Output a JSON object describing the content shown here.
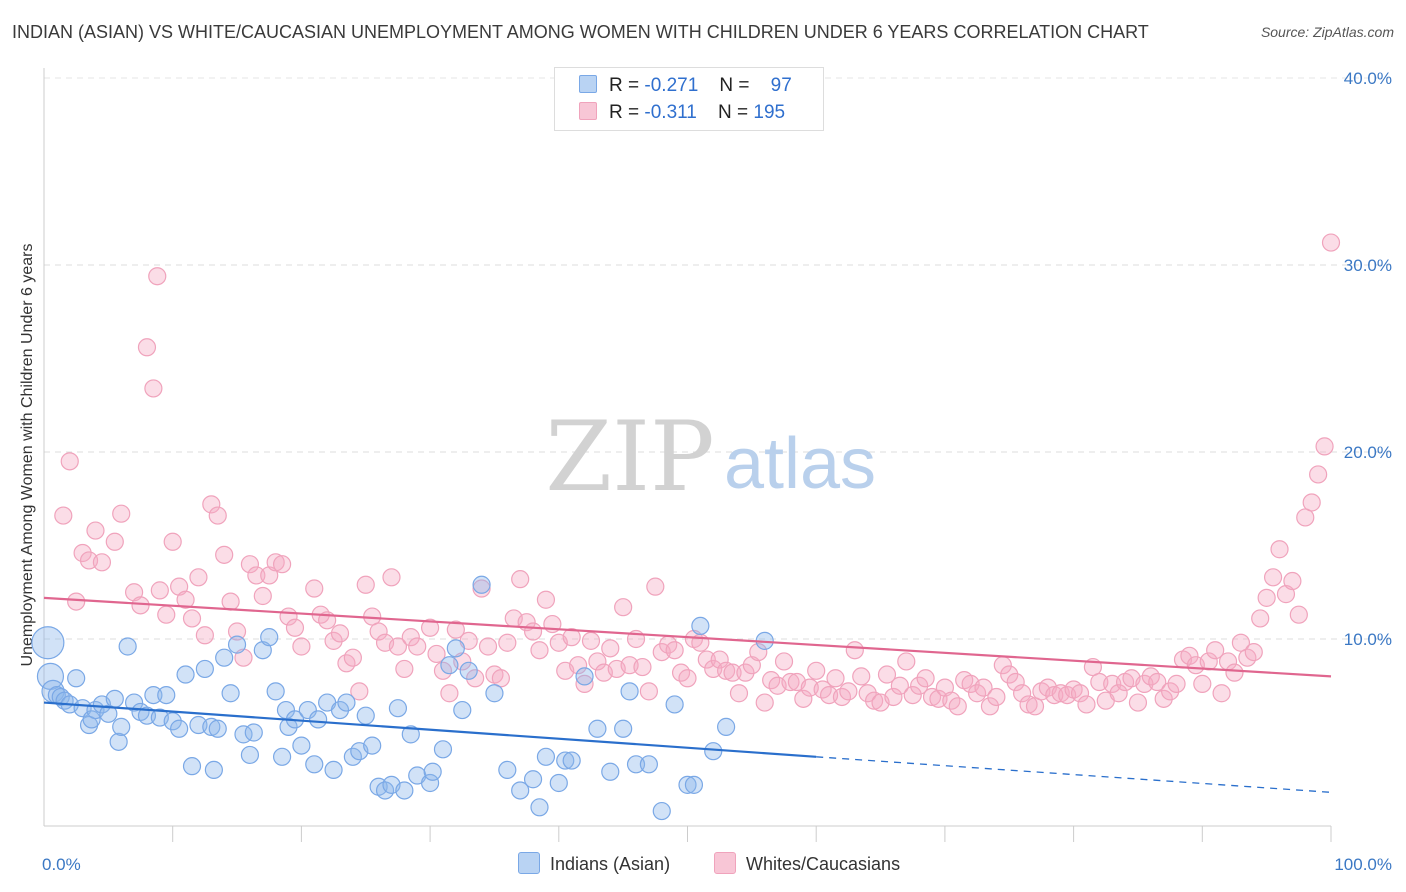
{
  "header": {
    "title": "INDIAN (ASIAN) VS WHITE/CAUCASIAN UNEMPLOYMENT AMONG WOMEN WITH CHILDREN UNDER 6 YEARS CORRELATION CHART",
    "source": "Source: ZipAtlas.com"
  },
  "watermark": {
    "zip": "ZIP",
    "atlas": "atlas"
  },
  "legend": {
    "series1": {
      "r_label": "R =",
      "r_value": "-0.271",
      "n_label": "N =",
      "n_value": "97"
    },
    "series2": {
      "r_label": "R =",
      "r_value": "-0.311",
      "n_label": "N =",
      "n_value": "195"
    }
  },
  "chart_data": {
    "type": "scatter",
    "title": "INDIAN (ASIAN) VS WHITE/CAUCASIAN UNEMPLOYMENT AMONG WOMEN WITH CHILDREN UNDER 6 YEARS CORRELATION CHART",
    "xlabel": "",
    "ylabel": "Unemployment Among Women with Children Under 6 years",
    "xlim": [
      0,
      100
    ],
    "ylim": [
      0,
      40
    ],
    "x_tick_labels": [
      "0.0%",
      "100.0%"
    ],
    "y_ticks": [
      10,
      20,
      30,
      40
    ],
    "y_tick_labels": [
      "10.0%",
      "20.0%",
      "30.0%",
      "40.0%"
    ],
    "grid": true,
    "legend_position": "top-center",
    "colors": {
      "indians": "#7aa8e6",
      "indians_line": "#2a6fcc",
      "whites": "#f0a3bc",
      "whites_line": "#e0668f"
    },
    "series": [
      {
        "name": "Indians (Asian)",
        "r": -0.271,
        "n": 97,
        "trend": {
          "x0": 0,
          "y0": 6.6,
          "x1": 60,
          "y1": 3.7,
          "dashed_to_x": 100,
          "dashed_to_y": 1.8
        },
        "points": [
          [
            0.3,
            9.8
          ],
          [
            0.5,
            8.0
          ],
          [
            0.7,
            7.2
          ],
          [
            1.0,
            7.0
          ],
          [
            1.3,
            6.9
          ],
          [
            1.6,
            6.7
          ],
          [
            2.0,
            6.5
          ],
          [
            2.5,
            7.9
          ],
          [
            3,
            6.3
          ],
          [
            3.5,
            5.4
          ],
          [
            3.7,
            5.7
          ],
          [
            4,
            6.2
          ],
          [
            4.5,
            6.5
          ],
          [
            5,
            6.0
          ],
          [
            5.5,
            6.8
          ],
          [
            5.8,
            4.5
          ],
          [
            6,
            5.3
          ],
          [
            6.5,
            9.6
          ],
          [
            7,
            6.6
          ],
          [
            7.5,
            6.1
          ],
          [
            8,
            5.9
          ],
          [
            8.5,
            7.0
          ],
          [
            9,
            5.8
          ],
          [
            9.5,
            7.0
          ],
          [
            10,
            5.6
          ],
          [
            10.5,
            5.2
          ],
          [
            11,
            8.1
          ],
          [
            11.5,
            3.2
          ],
          [
            12,
            5.4
          ],
          [
            12.5,
            8.4
          ],
          [
            13,
            5.3
          ],
          [
            13.2,
            3.0
          ],
          [
            13.5,
            5.2
          ],
          [
            14,
            9.0
          ],
          [
            14.5,
            7.1
          ],
          [
            15,
            9.7
          ],
          [
            15.5,
            4.9
          ],
          [
            16,
            3.8
          ],
          [
            16.3,
            5.0
          ],
          [
            17,
            9.4
          ],
          [
            17.5,
            10.1
          ],
          [
            18,
            7.2
          ],
          [
            18.5,
            3.7
          ],
          [
            18.8,
            6.2
          ],
          [
            19,
            5.3
          ],
          [
            19.5,
            5.7
          ],
          [
            20,
            4.3
          ],
          [
            20.5,
            6.2
          ],
          [
            21,
            3.3
          ],
          [
            21.3,
            5.7
          ],
          [
            22,
            6.6
          ],
          [
            22.5,
            3.0
          ],
          [
            23,
            6.2
          ],
          [
            23.5,
            6.6
          ],
          [
            24,
            3.7
          ],
          [
            24.5,
            4.0
          ],
          [
            25,
            5.9
          ],
          [
            25.5,
            4.3
          ],
          [
            26,
            2.1
          ],
          [
            26.5,
            1.9
          ],
          [
            27,
            2.2
          ],
          [
            27.5,
            6.3
          ],
          [
            28,
            1.9
          ],
          [
            28.5,
            4.9
          ],
          [
            29,
            2.7
          ],
          [
            30,
            2.3
          ],
          [
            30.2,
            2.9
          ],
          [
            31,
            4.1
          ],
          [
            31.5,
            8.6
          ],
          [
            32,
            9.5
          ],
          [
            32.5,
            6.2
          ],
          [
            33,
            8.3
          ],
          [
            34,
            12.9
          ],
          [
            35,
            7.1
          ],
          [
            36,
            3.0
          ],
          [
            37,
            1.9
          ],
          [
            38,
            2.5
          ],
          [
            38.5,
            1.0
          ],
          [
            39,
            3.7
          ],
          [
            40,
            2.3
          ],
          [
            40.5,
            3.5
          ],
          [
            41,
            3.5
          ],
          [
            42,
            8.0
          ],
          [
            43,
            5.2
          ],
          [
            44,
            2.9
          ],
          [
            45,
            5.2
          ],
          [
            45.5,
            7.2
          ],
          [
            46,
            3.3
          ],
          [
            47,
            3.3
          ],
          [
            48,
            0.8
          ],
          [
            49,
            6.5
          ],
          [
            50,
            2.2
          ],
          [
            50.5,
            2.2
          ],
          [
            51,
            10.7
          ],
          [
            52,
            4.0
          ],
          [
            53,
            5.3
          ],
          [
            56,
            9.9
          ]
        ]
      },
      {
        "name": "Whites/Caucasians",
        "r": -0.311,
        "n": 195,
        "trend": {
          "x0": 0,
          "y0": 12.2,
          "x1": 100,
          "y1": 8.0
        },
        "points": [
          [
            1.5,
            16.6
          ],
          [
            2,
            19.5
          ],
          [
            2.5,
            12.0
          ],
          [
            3,
            14.6
          ],
          [
            3.5,
            14.2
          ],
          [
            4,
            15.8
          ],
          [
            4.5,
            14.1
          ],
          [
            5.5,
            15.2
          ],
          [
            6,
            16.7
          ],
          [
            7,
            12.5
          ],
          [
            7.5,
            11.8
          ],
          [
            8,
            25.6
          ],
          [
            8.5,
            23.4
          ],
          [
            8.8,
            29.4
          ],
          [
            9,
            12.6
          ],
          [
            9.5,
            11.3
          ],
          [
            10,
            15.2
          ],
          [
            10.5,
            12.8
          ],
          [
            11,
            12.1
          ],
          [
            11.5,
            11.1
          ],
          [
            12,
            13.3
          ],
          [
            12.5,
            10.2
          ],
          [
            13,
            17.2
          ],
          [
            13.5,
            16.6
          ],
          [
            14,
            14.5
          ],
          [
            14.5,
            12.0
          ],
          [
            15,
            10.4
          ],
          [
            15.5,
            9.0
          ],
          [
            16,
            14.0
          ],
          [
            16.5,
            13.4
          ],
          [
            17,
            12.3
          ],
          [
            17.5,
            13.4
          ],
          [
            18,
            14.1
          ],
          [
            18.5,
            14.0
          ],
          [
            19,
            11.2
          ],
          [
            19.5,
            10.6
          ],
          [
            20,
            9.6
          ],
          [
            21,
            12.7
          ],
          [
            21.5,
            11.3
          ],
          [
            22,
            11.0
          ],
          [
            22.5,
            9.9
          ],
          [
            23,
            10.3
          ],
          [
            23.5,
            8.7
          ],
          [
            24,
            9.0
          ],
          [
            24.5,
            7.2
          ],
          [
            25,
            12.9
          ],
          [
            25.5,
            11.2
          ],
          [
            26,
            10.4
          ],
          [
            26.5,
            9.8
          ],
          [
            27,
            13.3
          ],
          [
            27.5,
            9.6
          ],
          [
            28,
            8.4
          ],
          [
            28.5,
            10.1
          ],
          [
            29,
            9.6
          ],
          [
            30,
            10.6
          ],
          [
            30.5,
            9.2
          ],
          [
            31,
            8.3
          ],
          [
            31.5,
            7.1
          ],
          [
            32,
            10.5
          ],
          [
            32.5,
            8.8
          ],
          [
            33,
            9.9
          ],
          [
            33.5,
            7.9
          ],
          [
            34,
            12.7
          ],
          [
            34.5,
            9.6
          ],
          [
            35,
            8.1
          ],
          [
            35.5,
            7.9
          ],
          [
            36,
            9.8
          ],
          [
            36.5,
            11.1
          ],
          [
            37,
            13.2
          ],
          [
            37.5,
            10.9
          ],
          [
            38,
            10.4
          ],
          [
            38.5,
            9.4
          ],
          [
            39,
            12.1
          ],
          [
            39.5,
            10.8
          ],
          [
            40,
            9.8
          ],
          [
            40.5,
            8.3
          ],
          [
            41,
            10.1
          ],
          [
            41.5,
            8.6
          ],
          [
            42,
            7.6
          ],
          [
            42.5,
            9.9
          ],
          [
            43,
            8.8
          ],
          [
            43.5,
            8.2
          ],
          [
            44,
            9.5
          ],
          [
            44.5,
            8.4
          ],
          [
            45,
            11.7
          ],
          [
            45.5,
            8.6
          ],
          [
            46,
            10.0
          ],
          [
            46.5,
            8.5
          ],
          [
            47,
            7.2
          ],
          [
            47.5,
            12.8
          ],
          [
            48,
            9.3
          ],
          [
            48.5,
            9.7
          ],
          [
            49,
            9.4
          ],
          [
            49.5,
            8.2
          ],
          [
            50,
            7.9
          ],
          [
            50.5,
            10.0
          ],
          [
            51,
            9.8
          ],
          [
            51.5,
            8.9
          ],
          [
            52,
            8.4
          ],
          [
            52.5,
            8.9
          ],
          [
            53,
            8.3
          ],
          [
            53.5,
            8.2
          ],
          [
            54,
            7.1
          ],
          [
            54.5,
            8.2
          ],
          [
            55,
            8.6
          ],
          [
            55.5,
            9.3
          ],
          [
            56,
            6.6
          ],
          [
            56.5,
            7.8
          ],
          [
            57,
            7.5
          ],
          [
            57.5,
            8.8
          ],
          [
            58,
            7.7
          ],
          [
            58.5,
            7.7
          ],
          [
            59,
            6.8
          ],
          [
            59.5,
            7.4
          ],
          [
            60,
            8.3
          ],
          [
            60.5,
            7.3
          ],
          [
            61,
            7.0
          ],
          [
            61.5,
            7.9
          ],
          [
            62,
            6.9
          ],
          [
            62.5,
            7.2
          ],
          [
            63,
            9.4
          ],
          [
            63.5,
            8.0
          ],
          [
            64,
            7.1
          ],
          [
            64.5,
            6.7
          ],
          [
            65,
            6.6
          ],
          [
            65.5,
            8.1
          ],
          [
            66,
            6.9
          ],
          [
            66.5,
            7.5
          ],
          [
            67,
            8.8
          ],
          [
            67.5,
            7.0
          ],
          [
            68,
            7.5
          ],
          [
            68.5,
            7.9
          ],
          [
            69,
            6.9
          ],
          [
            69.5,
            6.8
          ],
          [
            70,
            7.4
          ],
          [
            70.5,
            6.7
          ],
          [
            71,
            6.4
          ],
          [
            71.5,
            7.8
          ],
          [
            72,
            7.6
          ],
          [
            72.5,
            7.1
          ],
          [
            73,
            7.4
          ],
          [
            73.5,
            6.4
          ],
          [
            74,
            6.9
          ],
          [
            74.5,
            8.6
          ],
          [
            75,
            8.1
          ],
          [
            75.5,
            7.7
          ],
          [
            76,
            7.1
          ],
          [
            76.5,
            6.5
          ],
          [
            77,
            6.4
          ],
          [
            77.5,
            7.2
          ],
          [
            78,
            7.4
          ],
          [
            78.5,
            7.0
          ],
          [
            79,
            7.1
          ],
          [
            79.5,
            7.0
          ],
          [
            80,
            7.3
          ],
          [
            80.5,
            7.1
          ],
          [
            81,
            6.5
          ],
          [
            81.5,
            8.5
          ],
          [
            82,
            7.7
          ],
          [
            82.5,
            6.7
          ],
          [
            83,
            7.6
          ],
          [
            83.5,
            7.1
          ],
          [
            84,
            7.7
          ],
          [
            84.5,
            7.9
          ],
          [
            85,
            6.6
          ],
          [
            85.5,
            7.6
          ],
          [
            86,
            8.0
          ],
          [
            86.5,
            7.7
          ],
          [
            87,
            6.8
          ],
          [
            87.5,
            7.2
          ],
          [
            88,
            7.6
          ],
          [
            88.5,
            8.9
          ],
          [
            89,
            9.1
          ],
          [
            89.5,
            8.6
          ],
          [
            90,
            7.6
          ],
          [
            90.5,
            8.8
          ],
          [
            91,
            9.4
          ],
          [
            91.5,
            7.1
          ],
          [
            92,
            8.8
          ],
          [
            92.5,
            8.2
          ],
          [
            93,
            9.8
          ],
          [
            93.5,
            9.0
          ],
          [
            94,
            9.3
          ],
          [
            94.5,
            11.1
          ],
          [
            95,
            12.2
          ],
          [
            95.5,
            13.3
          ],
          [
            96,
            14.8
          ],
          [
            96.5,
            12.4
          ],
          [
            97,
            13.1
          ],
          [
            97.5,
            11.3
          ],
          [
            98,
            16.5
          ],
          [
            98.5,
            17.3
          ],
          [
            99,
            18.8
          ],
          [
            99.5,
            20.3
          ],
          [
            100,
            31.2
          ]
        ]
      }
    ]
  },
  "bottom_legend": {
    "item1": "Indians (Asian)",
    "item2": "Whites/Caucasians"
  }
}
